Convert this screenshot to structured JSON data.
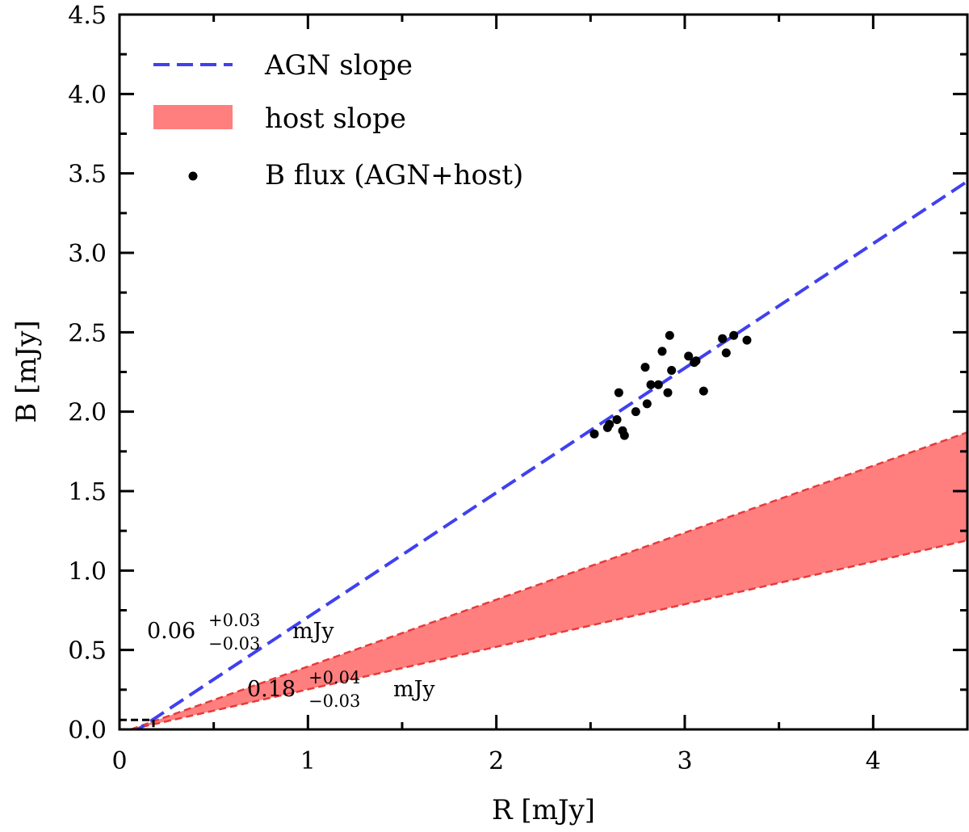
{
  "chart_data": {
    "type": "scatter",
    "xlabel": "R [mJy]",
    "ylabel": "B [mJy]",
    "xlim": [
      0,
      4.5
    ],
    "ylim": [
      0,
      4.5
    ],
    "x_ticks": [
      "0",
      "1",
      "2",
      "3",
      "4"
    ],
    "y_ticks": [
      "0.0",
      "0.5",
      "1.0",
      "1.5",
      "2.0",
      "2.5",
      "3.0",
      "3.5",
      "4.0",
      "4.5"
    ],
    "legend": {
      "position": "top-left",
      "entries": [
        {
          "label": "AGN slope",
          "style": "dashed-line",
          "color": "#4040f0"
        },
        {
          "label": "host slope",
          "style": "filled-band",
          "color": "#ff7f7f"
        },
        {
          "label": "B flux (AGN+host)",
          "style": "dot",
          "color": "#000000"
        }
      ]
    },
    "series": [
      {
        "name": "AGN slope",
        "kind": "line",
        "color": "#4040f0",
        "x": [
          0.06,
          4.5
        ],
        "y": [
          -0.03,
          3.45
        ]
      },
      {
        "name": "host slope",
        "kind": "band",
        "color": "#ff7f7f",
        "edge_color": "#e83a3a",
        "x": [
          0.06,
          4.5
        ],
        "y_upper": [
          0.0,
          1.87
        ],
        "y_lower": [
          0.0,
          1.19
        ]
      },
      {
        "name": "B flux (AGN+host)",
        "kind": "scatter",
        "color": "#000000",
        "points": [
          [
            2.52,
            1.86
          ],
          [
            2.59,
            1.9
          ],
          [
            2.6,
            1.92
          ],
          [
            2.64,
            1.95
          ],
          [
            2.65,
            2.12
          ],
          [
            2.67,
            1.88
          ],
          [
            2.68,
            1.85
          ],
          [
            2.74,
            2.0
          ],
          [
            2.79,
            2.28
          ],
          [
            2.8,
            2.05
          ],
          [
            2.82,
            2.17
          ],
          [
            2.86,
            2.17
          ],
          [
            2.88,
            2.38
          ],
          [
            2.91,
            2.12
          ],
          [
            2.92,
            2.48
          ],
          [
            2.93,
            2.26
          ],
          [
            3.02,
            2.35
          ],
          [
            3.05,
            2.31
          ],
          [
            3.06,
            2.32
          ],
          [
            3.1,
            2.13
          ],
          [
            3.2,
            2.46
          ],
          [
            3.22,
            2.37
          ],
          [
            3.26,
            2.48
          ],
          [
            3.33,
            2.45
          ]
        ]
      }
    ],
    "annotations": [
      {
        "name": "agn-intercept",
        "base": "0.06",
        "sup": "+0.03",
        "sub": "−0.03",
        "unit": "mJy",
        "color": "#000000"
      },
      {
        "name": "host-intercept",
        "base": "0.18",
        "sup": "+0.04",
        "sub": "−0.03",
        "unit": "mJy",
        "color": "#000000"
      }
    ],
    "intercept_markers": {
      "color": "#000000",
      "x": 0.18,
      "y": 0.06
    }
  }
}
